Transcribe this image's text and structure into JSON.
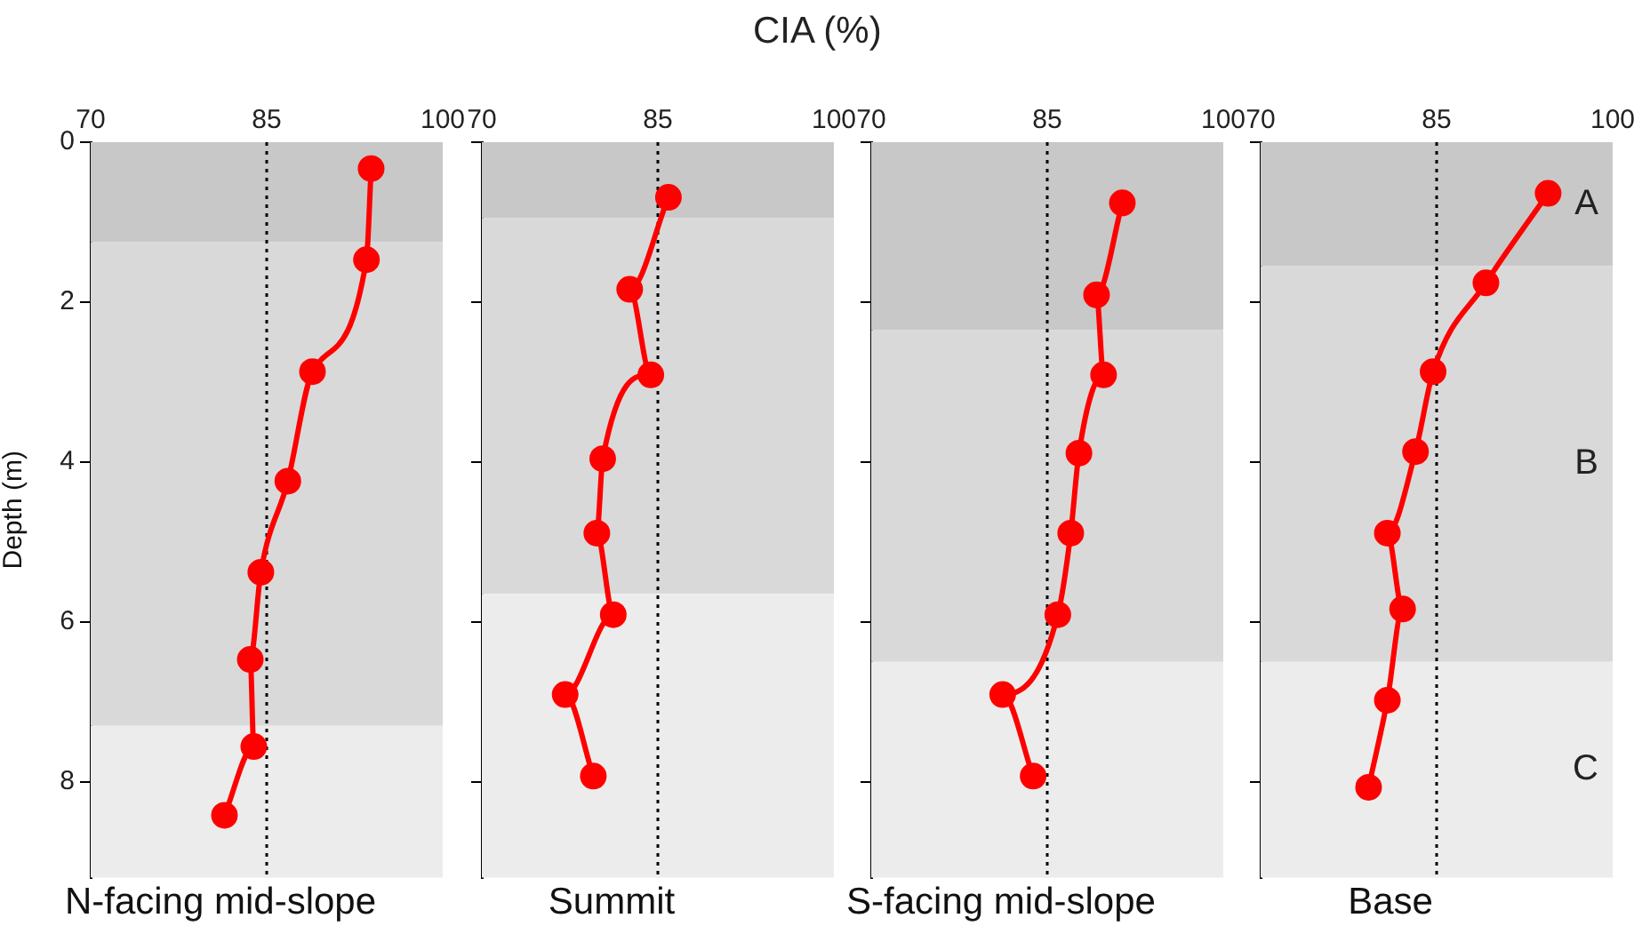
{
  "chart_data": [
    {
      "type": "line",
      "title": "N-facing mid-slope",
      "ylabel": "Depth (m)",
      "xlim": [
        70,
        100
      ],
      "xticks": [
        70,
        85,
        100
      ],
      "ylim": [
        9.2,
        0
      ],
      "yticks": [
        0,
        2,
        4,
        6,
        8
      ],
      "grid": false,
      "legend": false,
      "marker": "circle",
      "line_style": "solid",
      "series": [
        {
          "color": "#ff0000",
          "x": [
            93.9,
            93.5,
            88.9,
            86.8,
            84.5,
            83.6,
            83.9,
            81.4
          ],
          "values": [
            0.33,
            1.47,
            2.87,
            4.24,
            5.38,
            6.47,
            7.56,
            8.42
          ]
        }
      ],
      "ref_lines": [
        {
          "axis": "x",
          "value": 85,
          "line_style": "dotted",
          "color": "#000000"
        }
      ],
      "bands": [
        {
          "axis": "y",
          "from": 0,
          "to": 1.25,
          "color": "#c8c8c8"
        },
        {
          "axis": "y",
          "from": 1.25,
          "to": 7.3,
          "color": "#d9d9d9"
        },
        {
          "axis": "y",
          "from": 7.3,
          "to": 9.2,
          "color": "#ececec"
        }
      ]
    },
    {
      "type": "line",
      "title": "Summit",
      "xlabel": "CIA (%)",
      "xlim": [
        70,
        100
      ],
      "xticks": [
        70,
        85,
        100
      ],
      "ylim": [
        9.2,
        0
      ],
      "yticks": [
        0,
        2,
        4,
        6,
        8
      ],
      "tick_labels": "x",
      "grid": false,
      "legend": false,
      "marker": "circle",
      "line_style": "solid",
      "series": [
        {
          "color": "#ff0000",
          "x": [
            85.9,
            82.6,
            84.4,
            80.3,
            79.8,
            81.2,
            77.1,
            79.5
          ],
          "values": [
            0.69,
            1.84,
            2.91,
            3.96,
            4.89,
            5.91,
            6.91,
            7.93
          ]
        }
      ],
      "ref_lines": [
        {
          "axis": "x",
          "value": 85,
          "line_style": "dotted",
          "color": "#000000"
        }
      ],
      "bands": [
        {
          "axis": "y",
          "from": 0,
          "to": 0.95,
          "color": "#c8c8c8"
        },
        {
          "axis": "y",
          "from": 0.95,
          "to": 5.65,
          "color": "#d9d9d9"
        },
        {
          "axis": "y",
          "from": 5.65,
          "to": 9.2,
          "color": "#ececec"
        }
      ]
    },
    {
      "type": "line",
      "title": "S-facing mid-slope",
      "xlim": [
        70,
        100
      ],
      "xticks": [
        70,
        85,
        100
      ],
      "ylim": [
        9.2,
        0
      ],
      "yticks": [
        0,
        2,
        4,
        6,
        8
      ],
      "tick_labels": "x",
      "grid": false,
      "legend": false,
      "marker": "circle",
      "line_style": "solid",
      "series": [
        {
          "color": "#ff0000",
          "x": [
            91.4,
            89.2,
            89.8,
            87.7,
            87.0,
            85.9,
            81.2,
            83.8
          ],
          "values": [
            0.76,
            1.91,
            2.91,
            3.89,
            4.89,
            5.91,
            6.91,
            7.93
          ]
        }
      ],
      "ref_lines": [
        {
          "axis": "x",
          "value": 85,
          "line_style": "dotted",
          "color": "#000000"
        }
      ],
      "bands": [
        {
          "axis": "y",
          "from": 0,
          "to": 2.35,
          "color": "#c8c8c8"
        },
        {
          "axis": "y",
          "from": 2.35,
          "to": 6.5,
          "color": "#d9d9d9"
        },
        {
          "axis": "y",
          "from": 6.5,
          "to": 9.2,
          "color": "#ececec"
        }
      ]
    },
    {
      "type": "line",
      "title": "Base",
      "xlim": [
        70,
        100
      ],
      "xticks": [
        70,
        85,
        100
      ],
      "ylim": [
        9.2,
        0
      ],
      "yticks": [
        0,
        2,
        4,
        6,
        8
      ],
      "tick_labels": "x",
      "grid": false,
      "legend": false,
      "marker": "circle",
      "line_style": "solid",
      "series": [
        {
          "color": "#ff0000",
          "x": [
            94.5,
            89.2,
            84.7,
            83.2,
            80.8,
            82.1,
            80.8,
            79.2
          ],
          "values": [
            0.64,
            1.76,
            2.87,
            3.87,
            4.89,
            5.84,
            6.98,
            8.07
          ]
        }
      ],
      "ref_lines": [
        {
          "axis": "x",
          "value": 85,
          "line_style": "dotted",
          "color": "#000000"
        }
      ],
      "bands": [
        {
          "axis": "y",
          "from": 0,
          "to": 1.55,
          "color": "#c8c8c8",
          "label": "A"
        },
        {
          "axis": "y",
          "from": 1.55,
          "to": 6.5,
          "color": "#d9d9d9",
          "label": "B"
        },
        {
          "axis": "y",
          "from": 6.5,
          "to": 9.2,
          "color": "#ececec",
          "label": "C"
        }
      ]
    }
  ]
}
